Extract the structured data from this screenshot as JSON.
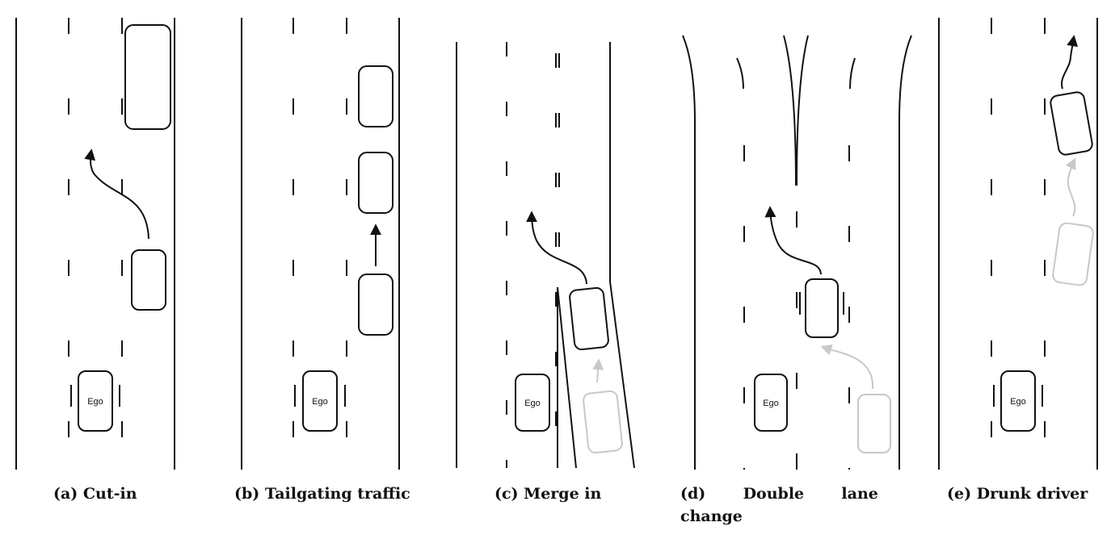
{
  "colors": {
    "ink": "#111111",
    "faded": "#c8c8c8"
  },
  "ego_label": "Ego",
  "captions": {
    "a": "(a) Cut-in",
    "b": "(b) Tailgating traffic",
    "c": "(c) Merge in",
    "d_line1": "(d)       Double       lane",
    "d_line2": "change",
    "e": "(e) Drunk driver"
  }
}
